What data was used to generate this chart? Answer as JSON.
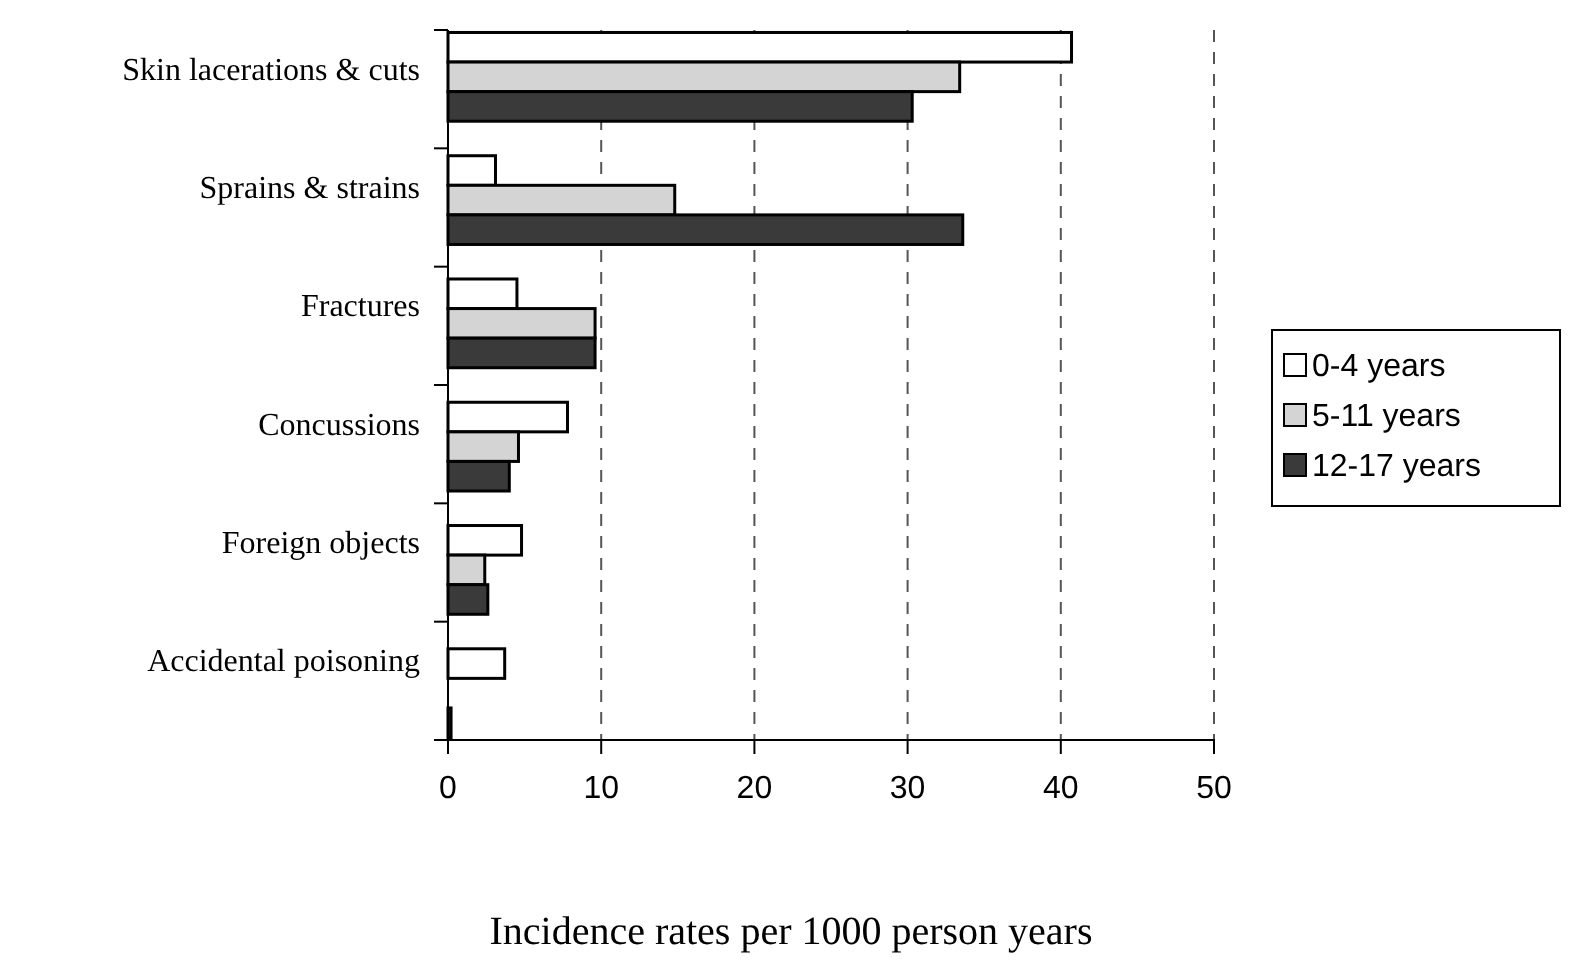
{
  "chart_data": {
    "type": "bar",
    "orientation": "horizontal",
    "xlabel": "Incidence rates per 1000 person years",
    "categories": [
      "Skin  lacerations & cuts",
      "Sprains & strains",
      "Fractures",
      "Concussions",
      "Foreign objects",
      "Accidental poisoning"
    ],
    "series": [
      {
        "name": "0-4 years",
        "color": "#ffffff",
        "values": [
          40.7,
          3.1,
          4.5,
          7.8,
          4.8,
          3.7
        ]
      },
      {
        "name": "5-11 years",
        "color": "#d4d4d4",
        "values": [
          33.4,
          14.8,
          9.6,
          4.6,
          2.4,
          null
        ]
      },
      {
        "name": "12-17 years",
        "color": "#3a3a3a",
        "values": [
          30.3,
          33.6,
          9.6,
          4.0,
          2.6,
          0.2
        ]
      }
    ],
    "xlim": [
      0,
      50
    ],
    "xticks": [
      0,
      10,
      20,
      30,
      40,
      50
    ],
    "grid": "x",
    "legend": "right"
  }
}
